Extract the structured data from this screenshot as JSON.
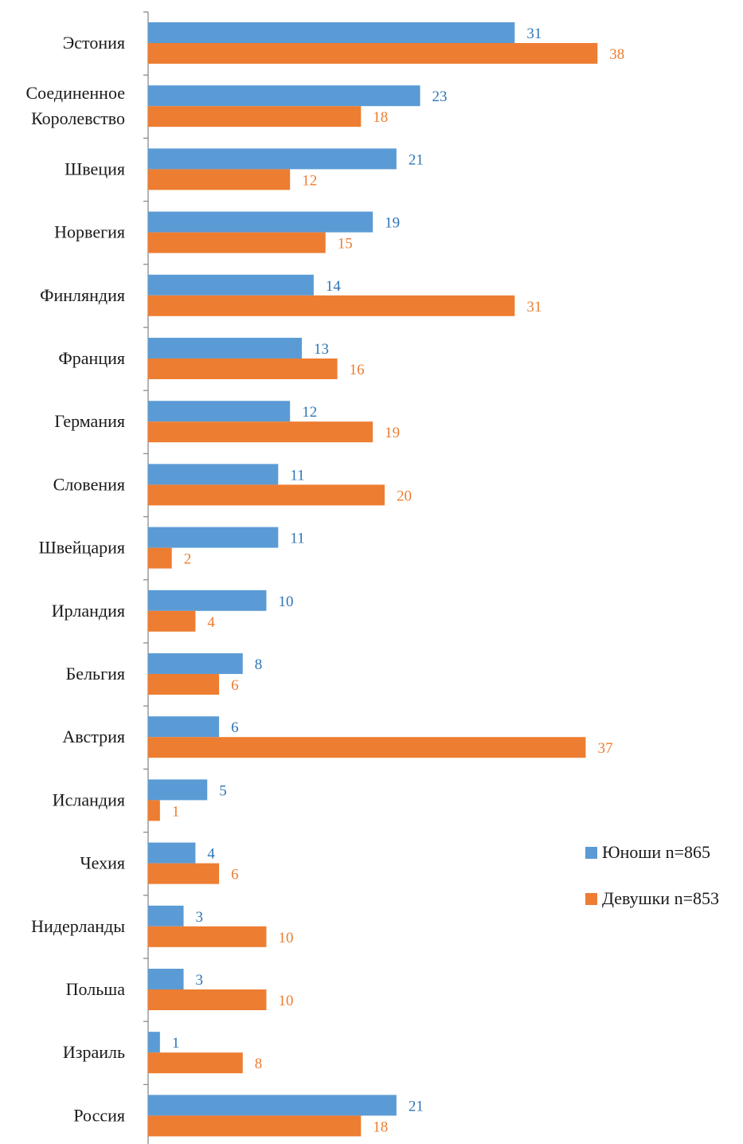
{
  "chart_data": {
    "type": "bar",
    "orientation": "horizontal",
    "categories": [
      "Эстония",
      "Соединенное Королевство",
      "Швеция",
      "Норвегия",
      "Финляндия",
      "Франция",
      "Германия",
      "Словения",
      "Швейцария",
      "Ирландия",
      "Бельгия",
      "Австрия",
      "Исландия",
      "Чехия",
      "Нидерланды",
      "Польша",
      "Израиль",
      "Россия"
    ],
    "category_lines": [
      [
        "Эстония"
      ],
      [
        "Соединенное",
        "Королевство"
      ],
      [
        "Швеция"
      ],
      [
        "Норвегия"
      ],
      [
        "Финляндия"
      ],
      [
        "Франция"
      ],
      [
        "Германия"
      ],
      [
        "Словения"
      ],
      [
        "Швейцария"
      ],
      [
        "Ирландия"
      ],
      [
        "Бельгия"
      ],
      [
        "Австрия"
      ],
      [
        "Исландия"
      ],
      [
        "Чехия"
      ],
      [
        "Нидерланды"
      ],
      [
        "Польша"
      ],
      [
        "Израиль"
      ],
      [
        "Россия"
      ]
    ],
    "series": [
      {
        "name": "Юноши n=865",
        "color": "#5B9BD5",
        "label_color": "#2E75B6",
        "values": [
          31,
          23,
          21,
          19,
          14,
          13,
          12,
          11,
          11,
          10,
          8,
          6,
          5,
          4,
          3,
          3,
          1,
          21
        ]
      },
      {
        "name": "Девушки n=853",
        "color": "#ED7D31",
        "label_color": "#ED7D31",
        "values": [
          38,
          18,
          12,
          15,
          31,
          16,
          19,
          20,
          2,
          4,
          6,
          37,
          1,
          6,
          10,
          10,
          8,
          18
        ]
      }
    ],
    "xlim": [
      0,
      40
    ],
    "data_labels": true,
    "grid": false,
    "legend_position": "right"
  }
}
